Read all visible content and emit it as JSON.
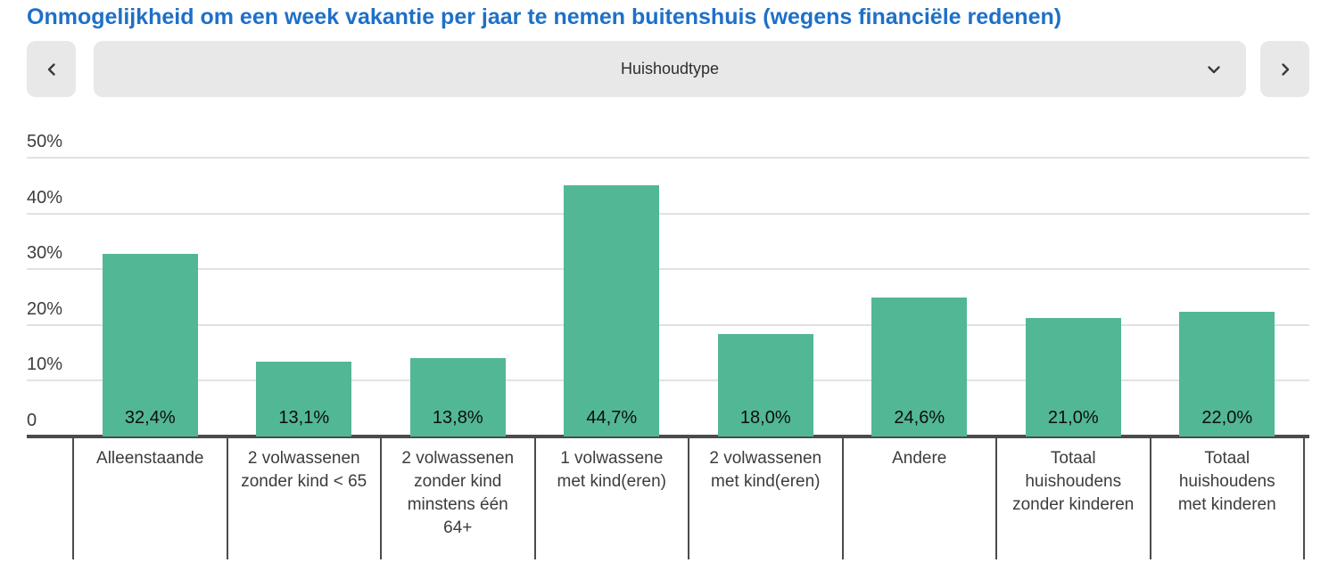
{
  "title": "Onmogelijkheid om een week vakantie per jaar te nemen buitenshuis (wegens financiële redenen)",
  "controls": {
    "dropdown_value": "Huishoudtype",
    "icons": {
      "prev": "chevron-left-icon",
      "dropdown": "chevron-down-icon",
      "next": "chevron-right-icon"
    }
  },
  "colors": {
    "title_blue": "#1e70c8",
    "bar_green": "#52b795",
    "control_gray": "#e8e8e8",
    "axis_dark": "#4b4b4b",
    "gridline_gray": "#e2e2e2"
  },
  "chart_data": {
    "type": "bar",
    "title": "Onmogelijkheid om een week vakantie per jaar te nemen buitenshuis (wegens financiële redenen)",
    "dimension": "Huishoudtype",
    "categories": [
      "Alleenstaande",
      "2 volwassenen zonder kind < 65",
      "2 volwassenen zonder kind minstens één 64+",
      "1 volwassene met kind(eren)",
      "2 volwassenen met kind(eren)",
      "Andere",
      "Totaal huishoudens zonder kinderen",
      "Totaal huishoudens met kinderen"
    ],
    "values": [
      32.4,
      13.1,
      13.8,
      44.7,
      18.0,
      24.6,
      21.0,
      22.0
    ],
    "value_labels": [
      "32,4%",
      "13,1%",
      "13,8%",
      "44,7%",
      "18,0%",
      "24,6%",
      "21,0%",
      "22,0%"
    ],
    "y_ticks": [
      {
        "value": 0,
        "label": "0"
      },
      {
        "value": 10,
        "label": "10%"
      },
      {
        "value": 20,
        "label": "20%"
      },
      {
        "value": 30,
        "label": "30%"
      },
      {
        "value": 40,
        "label": "40%"
      },
      {
        "value": 50,
        "label": "50%"
      }
    ],
    "xlabel": "",
    "ylabel": "",
    "ylim": [
      0,
      50
    ],
    "grid": true,
    "legend": "none",
    "bar_color": "#52b795"
  }
}
